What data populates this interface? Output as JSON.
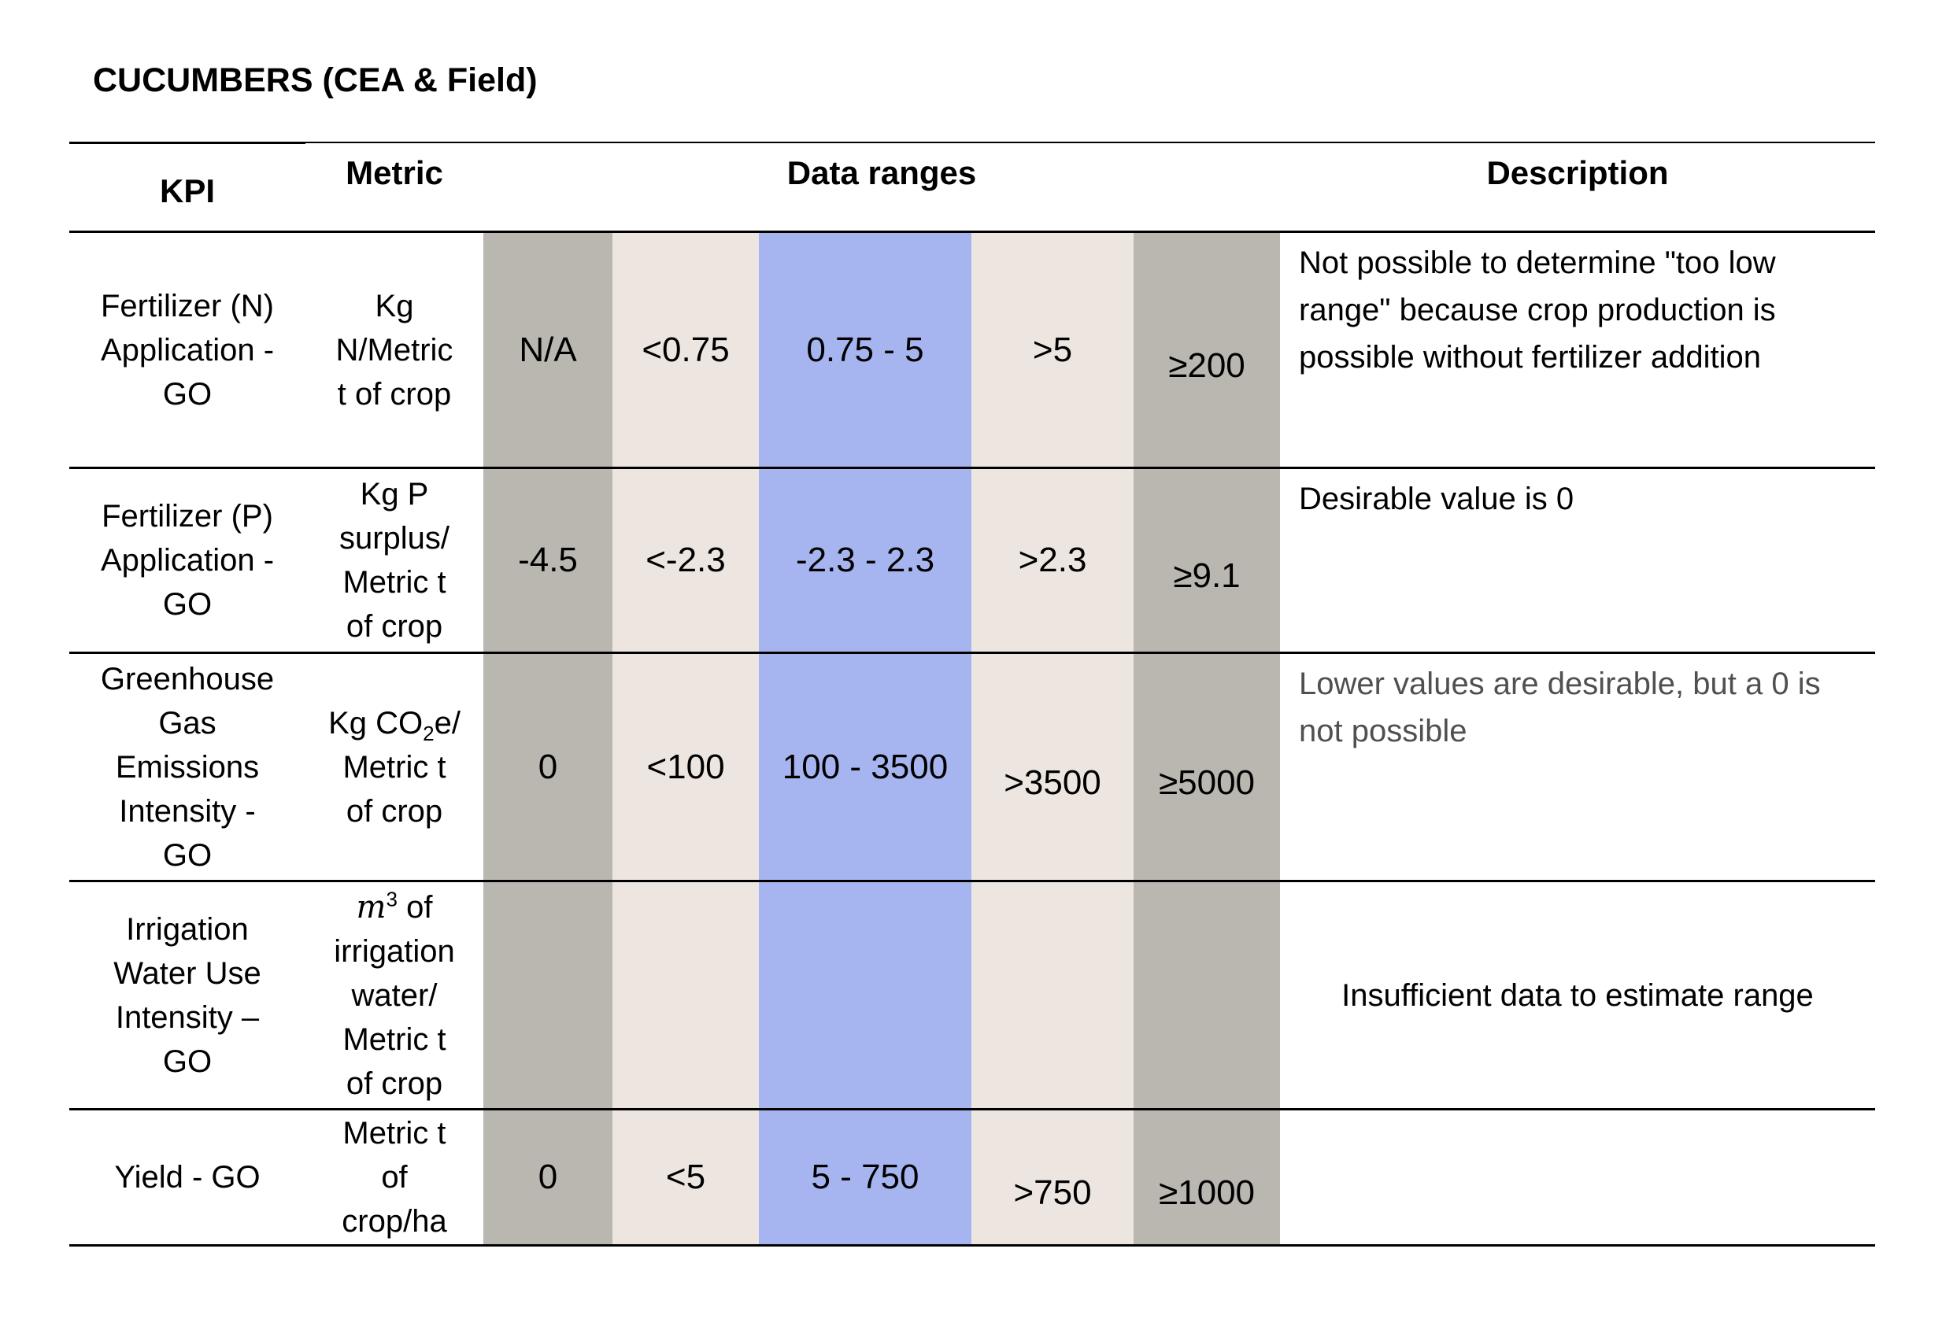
{
  "title": "CUCUMBERS (CEA & Field)",
  "headers": {
    "kpi": "KPI",
    "metric": "Metric",
    "data_ranges": "Data ranges",
    "description": "Description"
  },
  "rows": [
    {
      "kpi": "Fertilizer (N)\nApplication -\nGO",
      "metric": "Kg\nN/Metric\nt of crop",
      "ranges": [
        "N/A",
        "<0.75",
        "0.75 - 5",
        ">5",
        "≥200"
      ],
      "description": "Not possible to determine \"too low range\" because crop production is possible without fertilizer addition"
    },
    {
      "kpi": "Fertilizer (P)\nApplication -\nGO",
      "metric": "Kg P\nsurplus/\nMetric t\nof crop",
      "ranges": [
        "-4.5",
        "<-2.3",
        "-2.3 - 2.3",
        ">2.3",
        "≥9.1"
      ],
      "description": "Desirable value is 0"
    },
    {
      "kpi": "Greenhouse\nGas\nEmissions\nIntensity -\nGO",
      "metric_prefix": "Kg CO",
      "metric_sub": "2",
      "metric_suffix": "e/\nMetric t\nof crop",
      "ranges": [
        "0",
        "<100",
        "100 - 3500",
        ">3500",
        "≥5000"
      ],
      "description": "Lower values are desirable, but a 0 is not possible"
    },
    {
      "kpi": "Irrigation\nWater Use\nIntensity –\nGO",
      "metric_base": "m",
      "metric_exp": "3",
      "metric_rest": " of\nirrigation\nwater/\nMetric t\nof crop",
      "ranges": [
        "",
        "",
        "",
        "",
        ""
      ],
      "description": "Insufficient data to estimate range"
    },
    {
      "kpi": "Yield - GO",
      "metric": "Metric t\nof\ncrop/ha",
      "ranges": [
        "0",
        "<5",
        "5 - 750",
        ">750",
        "≥1000"
      ],
      "description": ""
    }
  ],
  "colors": {
    "range_outer": "#bab6b0",
    "range_mid": "#ede6e0",
    "range_target": "#a6b5f0"
  }
}
